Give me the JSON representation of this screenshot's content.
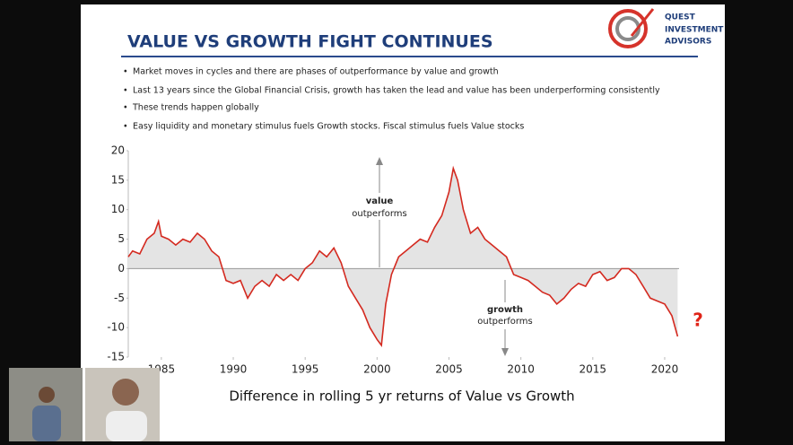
{
  "slide": {
    "title": "VALUE VS GROWTH FIGHT CONTINUES",
    "logo": [
      "QUEST",
      "INVESTMENT",
      "ADVISORS"
    ],
    "bullets": [
      "Market moves in cycles and there are phases of outperformance by value and growth",
      "Last 13 years since the Global Financial Crisis, growth has taken the lead and value has been underperforming consistently",
      "These trends happen globally",
      "Easy liquidity and monetary stimulus fuels Growth stocks. Fiscal stimulus fuels Value stocks"
    ],
    "caption": "Difference in rolling 5 yr returns of Value vs Growth"
  },
  "chart_data": {
    "type": "line",
    "annotations": [
      [
        "value",
        "outperforms"
      ],
      [
        "growth",
        "outperforms"
      ],
      [
        "?"
      ]
    ],
    "x": [
      1982.7,
      1983,
      1983.5,
      1984,
      1984.5,
      1984.8,
      1985,
      1985.5,
      1986,
      1986.5,
      1987,
      1987.5,
      1988,
      1988.5,
      1989,
      1989.5,
      1990,
      1990.5,
      1991,
      1991.5,
      1992,
      1992.5,
      1993,
      1993.5,
      1994,
      1994.5,
      1995,
      1995.5,
      1996,
      1996.5,
      1997,
      1997.5,
      1998,
      1998.5,
      1999,
      1999.5,
      2000,
      2000.3,
      2000.6,
      2001,
      2001.5,
      2002,
      2002.5,
      2003,
      2003.5,
      2004,
      2004.5,
      2005,
      2005.3,
      2005.6,
      2006,
      2006.5,
      2007,
      2007.5,
      2008,
      2008.5,
      2009,
      2009.5,
      2010,
      2010.5,
      2011,
      2011.5,
      2012,
      2012.5,
      2013,
      2013.5,
      2014,
      2014.5,
      2015,
      2015.5,
      2016,
      2016.5,
      2017,
      2017.5,
      2018,
      2018.5,
      2019,
      2019.5,
      2020,
      2020.5,
      2020.9
    ],
    "series": [
      {
        "color": "#d42a20",
        "fill": "#e4e4e4",
        "values": [
          2,
          3,
          2.5,
          5,
          6,
          8,
          5.5,
          5,
          4,
          5,
          4.5,
          6,
          5,
          3,
          2,
          -2,
          -2.5,
          -2,
          -5,
          -3,
          -2,
          -3,
          -1,
          -2,
          -1,
          -2,
          0,
          1,
          3,
          2,
          3.5,
          1,
          -3,
          -5,
          -7,
          -10,
          -12,
          -13,
          -6,
          -1,
          2,
          3,
          4,
          5,
          4.5,
          7,
          9,
          13,
          17,
          15,
          10,
          6,
          7,
          5,
          4,
          3,
          2,
          -1,
          -1.5,
          -2,
          -3,
          -4,
          -4.5,
          -6,
          -5,
          -3.5,
          -2.5,
          -3,
          -1,
          -0.5,
          -2,
          -1.5,
          0,
          0,
          -1,
          -3,
          -5,
          -5.5,
          -6,
          -8,
          -11.5
        ]
      }
    ],
    "xlim": [
      1982.7,
      2021
    ],
    "xticks": [
      1985,
      1990,
      1995,
      2000,
      2005,
      2010,
      2015,
      2020
    ],
    "ylim": [
      -15,
      20
    ],
    "yticks": [
      20,
      15,
      10,
      5,
      0,
      -5,
      -10,
      -15
    ]
  }
}
